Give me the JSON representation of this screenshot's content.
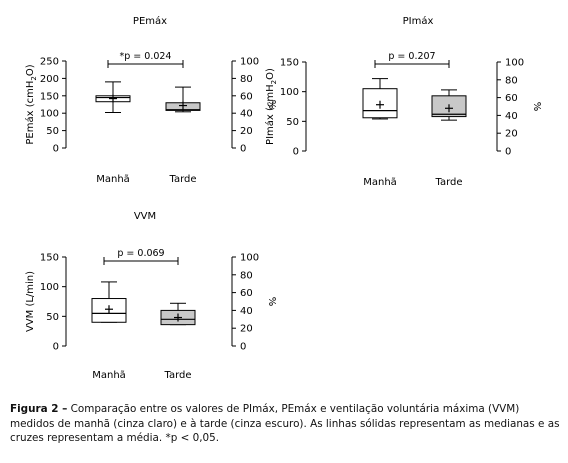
{
  "chart_data": [
    {
      "type": "box",
      "title": "PEmáx",
      "ylabel": "PEmáx (cmH2O)",
      "ylabel_parts": [
        "PEmáx (cmH",
        "2",
        "O)"
      ],
      "yticks": [
        0,
        50,
        100,
        150,
        200,
        250
      ],
      "ylim": [
        0,
        250
      ],
      "y2label": "%",
      "y2ticks": [
        0,
        20,
        40,
        60,
        80,
        100
      ],
      "categories": [
        "Manhã",
        "Tarde"
      ],
      "boxes": [
        {
          "name": "Manhã",
          "min": 102,
          "q1": 133,
          "median": 145,
          "q3": 150,
          "max": 190,
          "mean": 142,
          "color": "#ffffff"
        },
        {
          "name": "Tarde",
          "min": 104,
          "q1": 108,
          "median": 110,
          "q3": 130,
          "max": 175,
          "mean": 122,
          "color": "#c8c8c8"
        }
      ],
      "annotation": "*p = 0.024"
    },
    {
      "type": "box",
      "title": "PImáx",
      "ylabel": "PImáx (cmH2O)",
      "ylabel_parts": [
        "PImáx (cmH",
        "2",
        "O)"
      ],
      "yticks": [
        0,
        50,
        100,
        150
      ],
      "ylim": [
        0,
        150
      ],
      "y2label": "%",
      "y2ticks": [
        0,
        20,
        40,
        60,
        80,
        100
      ],
      "categories": [
        "Manhã",
        "Tarde"
      ],
      "boxes": [
        {
          "name": "Manhã",
          "min": 54,
          "q1": 56,
          "median": 68,
          "q3": 105,
          "max": 122,
          "mean": 78,
          "color": "#ffffff"
        },
        {
          "name": "Tarde",
          "min": 52,
          "q1": 58,
          "median": 62,
          "q3": 93,
          "max": 103,
          "mean": 72,
          "color": "#c8c8c8"
        }
      ],
      "annotation": "p = 0.207"
    },
    {
      "type": "box",
      "title": "VVM",
      "ylabel": "VVM (L/min)",
      "ylabel_parts": [
        "VVM (L/min)"
      ],
      "yticks": [
        0,
        50,
        100,
        150
      ],
      "ylim": [
        0,
        150
      ],
      "y2label": "%",
      "y2ticks": [
        0,
        20,
        40,
        60,
        80,
        100
      ],
      "categories": [
        "Manhã",
        "Tarde"
      ],
      "boxes": [
        {
          "name": "Manhã",
          "min": 40,
          "q1": 40,
          "median": 55,
          "q3": 80,
          "max": 108,
          "mean": 62,
          "color": "#ffffff"
        },
        {
          "name": "Tarde",
          "min": 36,
          "q1": 36,
          "median": 45,
          "q3": 60,
          "max": 72,
          "mean": 48,
          "color": "#c8c8c8"
        }
      ],
      "annotation": "p = 0.069"
    }
  ],
  "caption": {
    "label": "Figura 2 –",
    "text": " Comparação entre os valores de PImáx, PEmáx e ventilação voluntária máxima (VVM) medidos de manhã (cinza claro) e à tarde (cinza escuro). As linhas sólidas representam as medianas e as cruzes representam a média. *p < 0,05."
  }
}
